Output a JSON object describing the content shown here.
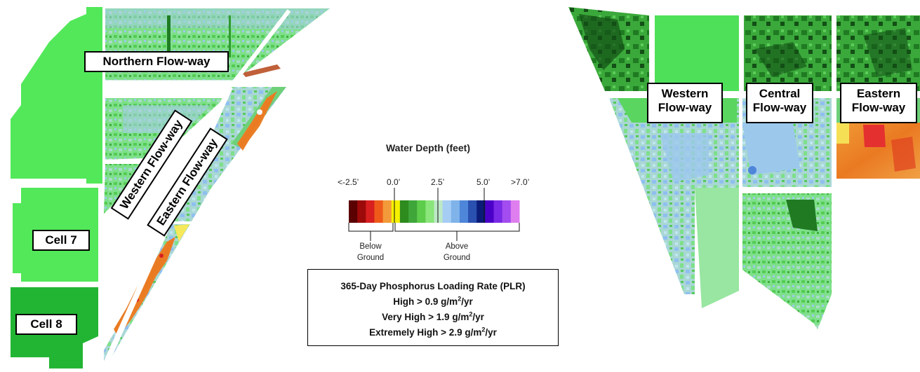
{
  "left_map_labels": {
    "northern": "Northern Flow-way",
    "western": "Western Flow-way",
    "eastern": "Eastern Flow-way",
    "cell7": "Cell 7",
    "cell8": "Cell 8"
  },
  "right_map_labels": {
    "western_line1": "Western",
    "western_line2": "Flow-way",
    "central_line1": "Central",
    "central_line2": "Flow-way",
    "eastern_line1": "Eastern",
    "eastern_line2": "Flow-way"
  },
  "legend": {
    "title": "Water Depth (feet)",
    "ticks": [
      "<-2.5’",
      "0.0’",
      "2.5’",
      "5.0’",
      ">7.0’"
    ],
    "below_line1": "Below",
    "below_line2": "Ground",
    "above_line1": "Above",
    "above_line2": "Ground",
    "colors": [
      "#5a0000",
      "#9c0a0a",
      "#d81f1f",
      "#ee5a1a",
      "#f39a3a",
      "#f5f000",
      "#2e8b1e",
      "#3fa63a",
      "#5ccc4a",
      "#8ae57a",
      "#bde9c7",
      "#a6cdf3",
      "#7fb3ea",
      "#4e86d9",
      "#2a50b0",
      "#0b1c78",
      "#4b00c8",
      "#7a2ae6",
      "#a34df0",
      "#df7fef"
    ]
  },
  "plr": {
    "title": "365-Day Phosphorus Loading Rate (PLR)",
    "high_prefix": "High  >  0.9 g/m",
    "very_high_prefix": "Very High  > 1.9 g/m",
    "extremely_high_prefix": "Extremely High  >  2.9 g/m",
    "sup": "2",
    "suffix": "/yr"
  }
}
